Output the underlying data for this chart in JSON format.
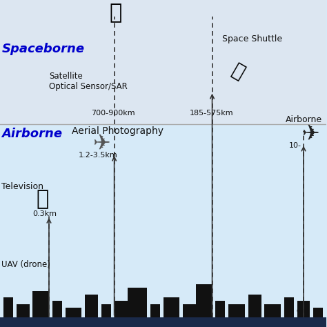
{
  "bg_top": "#dce6f1",
  "bg_mid": "#dce6f1",
  "bg_bottom": "#c5dff0",
  "ground_color": "#1a2a4a",
  "sky_color": "#d6eaf8",
  "space_color": "#dce6f1",
  "title_spaceborne": "Spaceborne",
  "title_airborne": "Airborne",
  "label_satellite": "Satellite\nOptical Sensor/SAR",
  "label_satellite_alt": "700-900km",
  "label_shuttle": "Space Shuttle",
  "label_shuttle_alt": "185-575km",
  "label_aerial": "Aerial Photography",
  "label_aerial_alt": "1.2-3.5km",
  "label_tv": "Television",
  "label_tv_alt": "0.3km",
  "label_uav": "UAV (drone)",
  "label_airborne_right": "Airborne",
  "label_airborne_right_alt": "10-",
  "dashed_color": "#333333",
  "arrow_color": "#333333",
  "text_color_blue": "#0000cc",
  "text_color_dark": "#111111"
}
